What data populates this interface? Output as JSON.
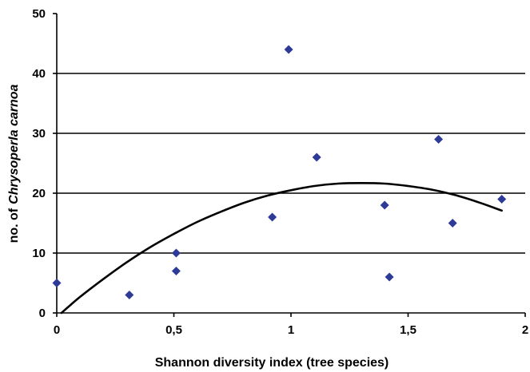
{
  "chart_data": {
    "type": "scatter",
    "xlabel": "Shannon diversity index (tree species)",
    "ylabel": [
      "no. of",
      "Chrysoperla carnoa"
    ],
    "xlim": [
      0,
      2
    ],
    "ylim": [
      0,
      50
    ],
    "xticks": [
      0,
      0.5,
      1,
      1.5,
      2
    ],
    "xtick_labels": [
      "0",
      "0,5",
      "1",
      "1,5",
      "2"
    ],
    "yticks": [
      0,
      10,
      20,
      30,
      40,
      50
    ],
    "ytick_labels": [
      "0",
      "10",
      "20",
      "30",
      "40",
      "50"
    ],
    "grid": {
      "horizontal": true,
      "vertical": false
    },
    "series": [
      {
        "marker": "diamond",
        "color": "#2E3B96",
        "x": [
          0,
          0.31,
          0.51,
          0.51,
          0.92,
          0.99,
          1.11,
          1.4,
          1.42,
          1.63,
          1.69,
          1.9
        ],
        "y": [
          5,
          3,
          10,
          7,
          16,
          44,
          26,
          18,
          6,
          29,
          15,
          19
        ]
      }
    ],
    "trendline": {
      "color": "#000000",
      "x": [
        0.02,
        0.1,
        0.2,
        0.3,
        0.4,
        0.5,
        0.6,
        0.7,
        0.8,
        0.9,
        1.0,
        1.1,
        1.2,
        1.3,
        1.4,
        1.5,
        1.6,
        1.7,
        1.8,
        1.9
      ],
      "y": [
        0,
        2.7,
        5.7,
        8.5,
        11.0,
        13.2,
        15.2,
        16.9,
        18.4,
        19.6,
        20.5,
        21.2,
        21.6,
        21.7,
        21.6,
        21.2,
        20.6,
        19.7,
        18.5,
        17.1
      ]
    }
  }
}
